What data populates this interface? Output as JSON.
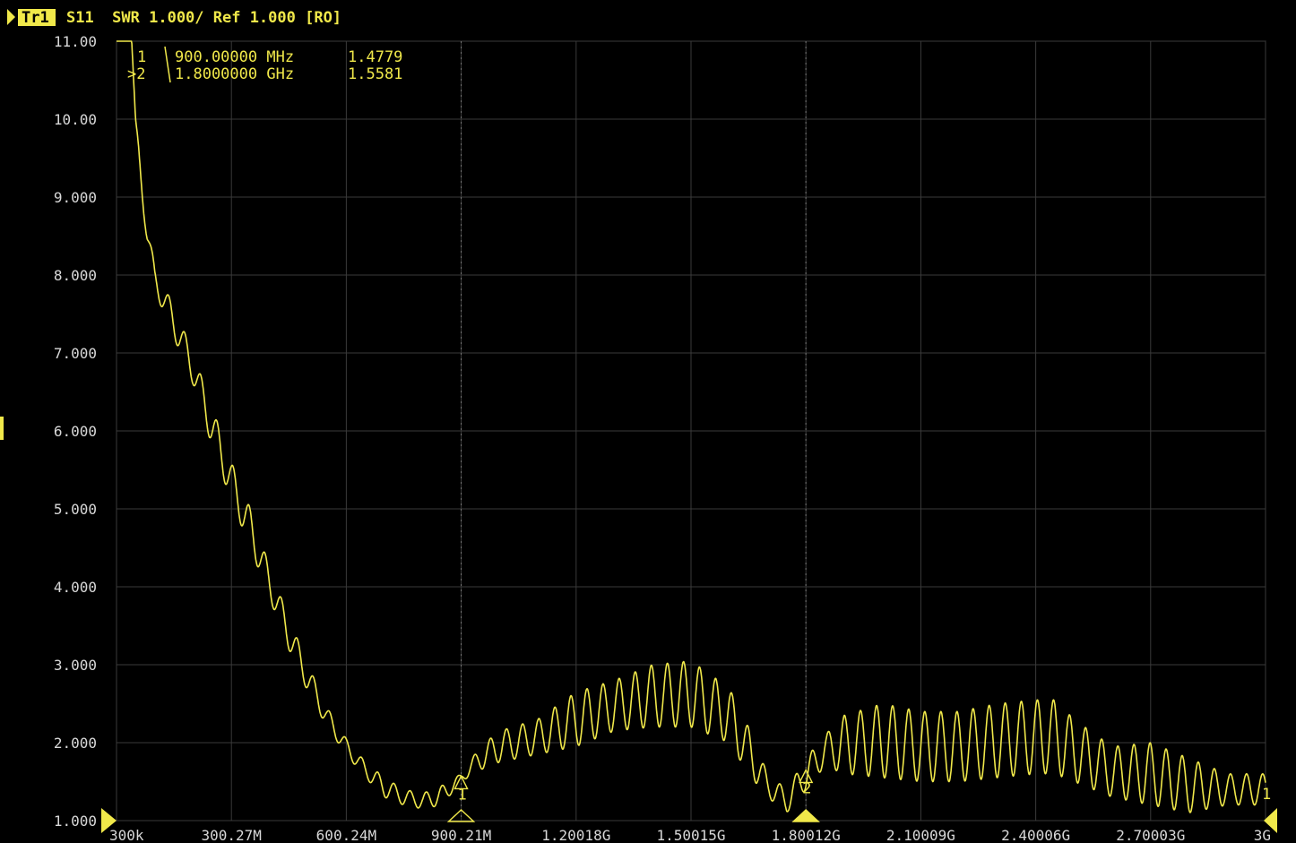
{
  "header": {
    "trace_badge": "Tr1",
    "status_text": "S11  SWR 1.000/ Ref 1.000 [RO]"
  },
  "colors": {
    "background": "#000000",
    "trace": "#f0e84a",
    "grid": "#3a3a3a",
    "grid_dotted": "#777777",
    "axis_text": "#d8d8d8",
    "badge_bg": "#f0e84a",
    "badge_text": "#000000"
  },
  "markers": {
    "readout": [
      {
        "id": "1",
        "freq": "900.00000 MHz",
        "value": "1.4779"
      },
      {
        "id": ">2",
        "freq": "1.8000000 GHz",
        "value": "1.5581"
      }
    ],
    "points": [
      {
        "label": "1",
        "freq_ghz": 0.9,
        "value": 1.4779
      },
      {
        "label": "2",
        "freq_ghz": 1.8,
        "value": 1.5581
      }
    ],
    "end_label": "1"
  },
  "chart_data": {
    "type": "line",
    "title": "",
    "xlabel": "",
    "ylabel": "",
    "x_unit": "GHz",
    "xlim": [
      0.0003,
      3.0
    ],
    "ylim": [
      1.0,
      11.0
    ],
    "y_tick_labels": [
      "11.00",
      "10.00",
      "9.000",
      "8.000",
      "7.000",
      "6.000",
      "5.000",
      "4.000",
      "3.000",
      "2.000",
      "1.000"
    ],
    "x_tick_labels": [
      "300k",
      "300.27M",
      "600.24M",
      "900.21M",
      "1.20018G",
      "1.50015G",
      "1.80012G",
      "2.10009G",
      "2.40006G",
      "2.70003G",
      "3G"
    ],
    "grid": true,
    "series": [
      {
        "name": "",
        "ripple_period_ghz": 0.042,
        "envelope_low": [
          [
            0.0003,
            11.5
          ],
          [
            0.02,
            11.3
          ],
          [
            0.04,
            11.0
          ],
          [
            0.05,
            10.0
          ],
          [
            0.06,
            9.3
          ],
          [
            0.08,
            8.4
          ],
          [
            0.1,
            7.8
          ],
          [
            0.15,
            7.2
          ],
          [
            0.2,
            6.6
          ],
          [
            0.25,
            5.8
          ],
          [
            0.3,
            5.1
          ],
          [
            0.35,
            4.5
          ],
          [
            0.4,
            3.85
          ],
          [
            0.45,
            3.2
          ],
          [
            0.5,
            2.65
          ],
          [
            0.55,
            2.2
          ],
          [
            0.6,
            1.85
          ],
          [
            0.65,
            1.55
          ],
          [
            0.7,
            1.3
          ],
          [
            0.75,
            1.2
          ],
          [
            0.8,
            1.15
          ],
          [
            0.85,
            1.2
          ],
          [
            0.9,
            1.5
          ],
          [
            0.95,
            1.65
          ],
          [
            1.0,
            1.75
          ],
          [
            1.1,
            1.85
          ],
          [
            1.2,
            1.95
          ],
          [
            1.3,
            2.15
          ],
          [
            1.4,
            2.2
          ],
          [
            1.5,
            2.2
          ],
          [
            1.6,
            2.0
          ],
          [
            1.65,
            1.6
          ],
          [
            1.7,
            1.3
          ],
          [
            1.75,
            1.1
          ],
          [
            1.8,
            1.4
          ],
          [
            1.85,
            1.7
          ],
          [
            1.9,
            1.6
          ],
          [
            2.0,
            1.55
          ],
          [
            2.1,
            1.5
          ],
          [
            2.2,
            1.5
          ],
          [
            2.3,
            1.55
          ],
          [
            2.4,
            1.6
          ],
          [
            2.45,
            1.6
          ],
          [
            2.5,
            1.5
          ],
          [
            2.6,
            1.3
          ],
          [
            2.7,
            1.2
          ],
          [
            2.8,
            1.1
          ],
          [
            2.9,
            1.2
          ],
          [
            3.0,
            1.2
          ]
        ],
        "envelope_high": [
          [
            0.0003,
            11.5
          ],
          [
            0.02,
            11.3
          ],
          [
            0.04,
            11.0
          ],
          [
            0.05,
            10.0
          ],
          [
            0.06,
            9.6
          ],
          [
            0.08,
            8.7
          ],
          [
            0.1,
            8.1
          ],
          [
            0.15,
            7.6
          ],
          [
            0.2,
            7.0
          ],
          [
            0.25,
            6.3
          ],
          [
            0.3,
            5.6
          ],
          [
            0.35,
            5.0
          ],
          [
            0.4,
            4.25
          ],
          [
            0.45,
            3.6
          ],
          [
            0.5,
            3.0
          ],
          [
            0.55,
            2.45
          ],
          [
            0.6,
            2.05
          ],
          [
            0.65,
            1.75
          ],
          [
            0.7,
            1.55
          ],
          [
            0.75,
            1.4
          ],
          [
            0.8,
            1.35
          ],
          [
            0.85,
            1.45
          ],
          [
            0.9,
            1.6
          ],
          [
            0.95,
            1.95
          ],
          [
            1.0,
            2.15
          ],
          [
            1.1,
            2.3
          ],
          [
            1.2,
            2.65
          ],
          [
            1.3,
            2.8
          ],
          [
            1.4,
            3.0
          ],
          [
            1.5,
            3.05
          ],
          [
            1.6,
            2.7
          ],
          [
            1.65,
            2.2
          ],
          [
            1.7,
            1.6
          ],
          [
            1.75,
            1.4
          ],
          [
            1.8,
            1.8
          ],
          [
            1.85,
            2.1
          ],
          [
            1.9,
            2.35
          ],
          [
            2.0,
            2.5
          ],
          [
            2.1,
            2.4
          ],
          [
            2.2,
            2.4
          ],
          [
            2.3,
            2.5
          ],
          [
            2.4,
            2.55
          ],
          [
            2.45,
            2.55
          ],
          [
            2.5,
            2.3
          ],
          [
            2.6,
            1.95
          ],
          [
            2.7,
            2.0
          ],
          [
            2.8,
            1.8
          ],
          [
            2.9,
            1.6
          ],
          [
            3.0,
            1.6
          ]
        ]
      }
    ]
  }
}
